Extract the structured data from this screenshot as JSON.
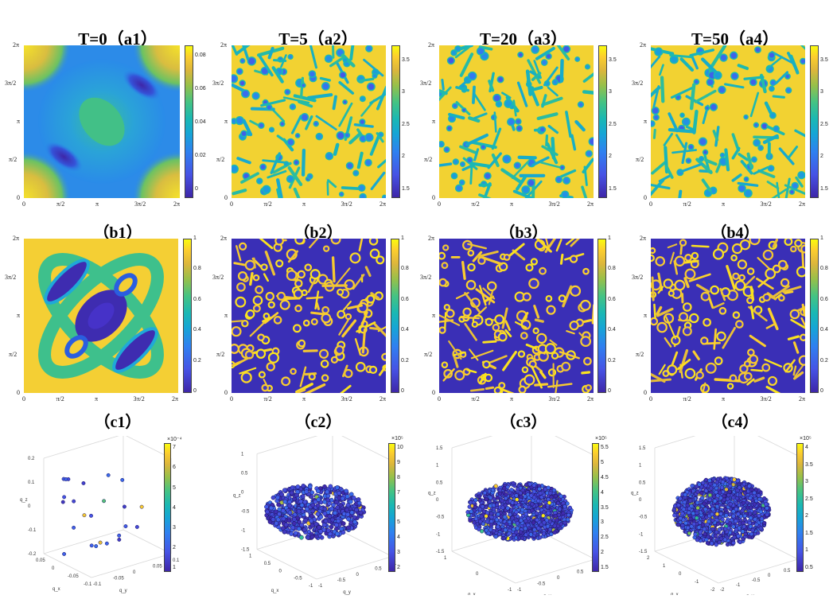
{
  "titles": {
    "a": [
      "T=0（a1）",
      "T=5（a2）",
      "T=20（a3）",
      "T=50（a4）"
    ],
    "b": [
      "（b1）",
      "（b2）",
      "（b3）",
      "（b4）"
    ],
    "c": [
      "（c1）",
      "（c2）",
      "（c3）",
      "（c4）"
    ]
  },
  "axis_ticks": [
    "0",
    "π/2",
    "π",
    "3π/2",
    "2π"
  ],
  "colormap": "parula",
  "colorbars": {
    "a1": [
      "0",
      "0.02",
      "0.04",
      "0.06",
      "0.08"
    ],
    "a2": [
      "1.5",
      "2",
      "2.5",
      "3",
      "3.5"
    ],
    "a3": [
      "1.5",
      "2",
      "2.5",
      "3",
      "3.5"
    ],
    "a4": [
      "1.5",
      "2",
      "2.5",
      "3",
      "3.5"
    ],
    "b": [
      "0",
      "0.2",
      "0.4",
      "0.6",
      "0.8",
      "1"
    ],
    "c1": {
      "exp": "×10⁻⁴",
      "ticks": [
        "1",
        "2",
        "3",
        "4",
        "5",
        "6",
        "7"
      ]
    },
    "c2": {
      "exp": "×10⁵",
      "ticks": [
        "2",
        "3",
        "4",
        "5",
        "6",
        "7",
        "8",
        "9",
        "10"
      ]
    },
    "c3": {
      "exp": "×10⁵",
      "ticks": [
        "1.5",
        "2",
        "2.5",
        "3",
        "3.5",
        "4",
        "4.5",
        "5",
        "5.5"
      ]
    },
    "c4": {
      "exp": "×10⁵",
      "ticks": [
        "0.5",
        "1",
        "1.5",
        "2",
        "2.5",
        "3",
        "3.5",
        "4"
      ]
    }
  },
  "scatter3d": {
    "c1": {
      "z_ticks": [
        "0.2",
        "0.1",
        "0",
        "-0.1",
        "-0.2"
      ],
      "x_ticks": [
        "0.05",
        "0",
        "-0.05",
        "-0.1"
      ],
      "y_ticks": [
        "-0.1",
        "-0.05",
        "0",
        "0.05",
        "0.1"
      ],
      "xlabel": "q_x",
      "ylabel": "q_y",
      "zlabel": "q_z"
    },
    "c2": {
      "z_ticks": [
        "1",
        "0.5",
        "0",
        "-0.5",
        "-1",
        "-1.5"
      ],
      "x_ticks": [
        "1",
        "0.5",
        "0",
        "-0.5",
        "-1"
      ],
      "y_ticks": [
        "-1",
        "-0.5",
        "0",
        "0.5",
        "1"
      ],
      "xlabel": "q_x",
      "ylabel": "q_y",
      "zlabel": "q_z"
    },
    "c3": {
      "z_ticks": [
        "1.5",
        "1",
        "0.5",
        "0",
        "-0.5",
        "-1",
        "-1.5"
      ],
      "x_ticks": [
        "1",
        "0",
        "-1"
      ],
      "y_ticks": [
        "-1",
        "-0.5",
        "0",
        "0.5",
        "1"
      ],
      "xlabel": "q_x",
      "ylabel": "q_y",
      "zlabel": "q_z"
    },
    "c4": {
      "z_ticks": [
        "1.5",
        "1",
        "0.5",
        "0",
        "-0.5",
        "-1",
        "-1.5"
      ],
      "x_ticks": [
        "2",
        "1",
        "0",
        "-1",
        "-2"
      ],
      "y_ticks": [
        "-2",
        "-1",
        "-0.5",
        "0",
        "0.5",
        "1"
      ],
      "xlabel": "q_x",
      "ylabel": "q_y",
      "zlabel": "q_z"
    }
  },
  "chart_data": [
    {
      "type": "heatmap",
      "panel": "a1",
      "title": "T=0（a1）",
      "xlim": [
        0,
        6.2832
      ],
      "ylim": [
        0,
        6.2832
      ],
      "clim": [
        0,
        0.09
      ],
      "x_ticks": [
        "0",
        "π/2",
        "π",
        "3π/2",
        "2π"
      ],
      "y_ticks": [
        "0",
        "π/2",
        "π",
        "3π/2",
        "2π"
      ]
    },
    {
      "type": "heatmap",
      "panel": "a2",
      "title": "T=5（a2）",
      "xlim": [
        0,
        6.2832
      ],
      "ylim": [
        0,
        6.2832
      ],
      "clim": [
        1.4,
        3.8
      ]
    },
    {
      "type": "heatmap",
      "panel": "a3",
      "title": "T=20（a3）",
      "xlim": [
        0,
        6.2832
      ],
      "ylim": [
        0,
        6.2832
      ],
      "clim": [
        1.4,
        3.8
      ]
    },
    {
      "type": "heatmap",
      "panel": "a4",
      "title": "T=50（a4）",
      "xlim": [
        0,
        6.2832
      ],
      "ylim": [
        0,
        6.2832
      ],
      "clim": [
        1.4,
        3.8
      ]
    },
    {
      "type": "heatmap",
      "panel": "b1",
      "title": "（b1）",
      "xlim": [
        0,
        6.2832
      ],
      "ylim": [
        0,
        6.2832
      ],
      "clim": [
        0,
        1
      ]
    },
    {
      "type": "heatmap",
      "panel": "b2",
      "title": "（b2）",
      "xlim": [
        0,
        6.2832
      ],
      "ylim": [
        0,
        6.2832
      ],
      "clim": [
        0,
        1
      ]
    },
    {
      "type": "heatmap",
      "panel": "b3",
      "title": "（b3）",
      "xlim": [
        0,
        6.2832
      ],
      "ylim": [
        0,
        6.2832
      ],
      "clim": [
        0,
        1
      ]
    },
    {
      "type": "heatmap",
      "panel": "b4",
      "title": "（b4）",
      "xlim": [
        0,
        6.2832
      ],
      "ylim": [
        0,
        6.2832
      ],
      "clim": [
        0,
        1
      ]
    },
    {
      "type": "scatter",
      "panel": "c1",
      "title": "（c1）",
      "dims": 3,
      "xlim": [
        -0.1,
        0.1
      ],
      "ylim": [
        -0.1,
        0.1
      ],
      "zlim": [
        -0.2,
        0.2
      ],
      "clim": [
        1,
        7
      ],
      "cscale": "×10⁻⁴"
    },
    {
      "type": "scatter",
      "panel": "c2",
      "title": "（c2）",
      "dims": 3,
      "xlim": [
        -1,
        1
      ],
      "ylim": [
        -1,
        1
      ],
      "zlim": [
        -1.5,
        1
      ],
      "clim": [
        2,
        10
      ],
      "cscale": "×10⁵"
    },
    {
      "type": "scatter",
      "panel": "c3",
      "title": "（c3）",
      "dims": 3,
      "xlim": [
        -1.5,
        1.5
      ],
      "ylim": [
        -1,
        1
      ],
      "zlim": [
        -1.5,
        1.5
      ],
      "clim": [
        1.5,
        5.5
      ],
      "cscale": "×10⁵"
    },
    {
      "type": "scatter",
      "panel": "c4",
      "title": "（c4）",
      "dims": 3,
      "xlim": [
        -2,
        2
      ],
      "ylim": [
        -2,
        1
      ],
      "zlim": [
        -1.5,
        1.5
      ],
      "clim": [
        0.5,
        4
      ],
      "cscale": "×10⁵"
    }
  ]
}
